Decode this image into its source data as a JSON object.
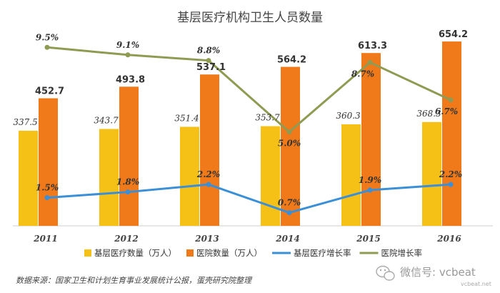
{
  "chart_data": {
    "type": "bar",
    "title": "基层医疗机构卫生人员数量",
    "categories": [
      "2011",
      "2012",
      "2013",
      "2014",
      "2015",
      "2016"
    ],
    "series": [
      {
        "name": "基层医疗数量（万人）",
        "kind": "bar",
        "color": "#F6C117",
        "values": [
          337.5,
          343.7,
          351.4,
          353.7,
          360.3,
          368.3
        ]
      },
      {
        "name": "医院数量（万人）",
        "kind": "bar",
        "color": "#F07A1A",
        "values": [
          452.7,
          493.8,
          537.1,
          564.2,
          613.3,
          654.2
        ]
      },
      {
        "name": "基层医疗增长率",
        "kind": "line",
        "color": "#3B8FD6",
        "values": [
          1.5,
          1.8,
          2.2,
          0.7,
          1.9,
          2.2
        ],
        "labels": [
          "1.5%",
          "1.8%",
          "2.2%",
          "0.7%",
          "1.9%",
          "2.2%"
        ]
      },
      {
        "name": "医院增长率",
        "kind": "line",
        "color": "#8F9A52",
        "values": [
          9.5,
          9.1,
          8.8,
          5.0,
          8.7,
          6.7
        ],
        "labels": [
          "9.5%",
          "9.1%",
          "8.8%",
          "5.0%",
          "8.7%",
          "6.7%"
        ]
      }
    ],
    "bar_labels": {
      "primary": [
        "337.5",
        "343.7",
        "351.4",
        "353.7",
        "360.3",
        "368.3"
      ],
      "secondary": [
        "452.7",
        "493.8",
        "537.1",
        "564.2",
        "613.3",
        "654.2"
      ]
    },
    "bar_ylim": [
      0,
      700
    ],
    "line_ylim": [
      0,
      10.5
    ],
    "grid": false,
    "legend_position": "bottom"
  },
  "source": "数据来源：国家卫生和计划生育事业发展统计公报，蛋壳研究院整理",
  "watermark": {
    "text": "微信号: vcbeat",
    "sub": "vcbeat.net",
    "icon": "wechat-icon"
  }
}
